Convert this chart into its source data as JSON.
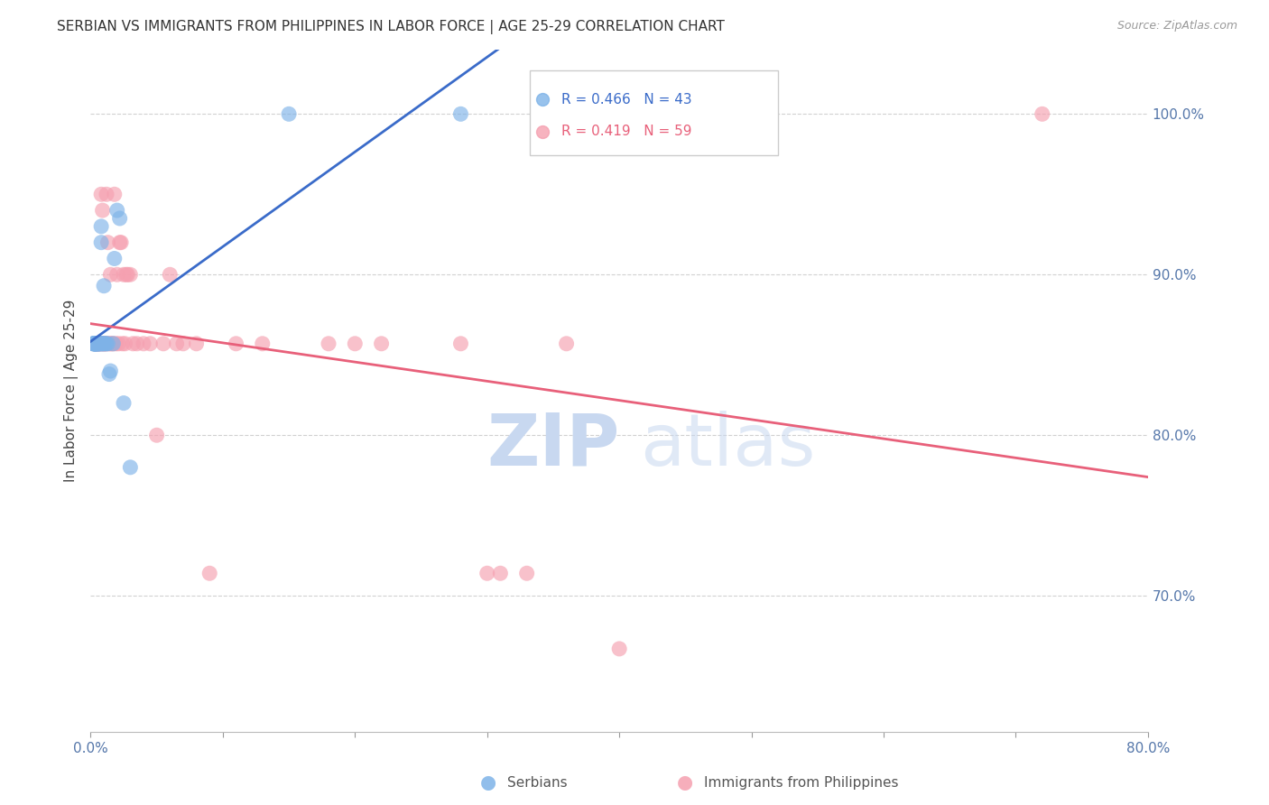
{
  "title": "SERBIAN VS IMMIGRANTS FROM PHILIPPINES IN LABOR FORCE | AGE 25-29 CORRELATION CHART",
  "source": "Source: ZipAtlas.com",
  "ylabel": "In Labor Force | Age 25-29",
  "xlim": [
    0.0,
    0.8
  ],
  "ylim": [
    0.615,
    1.04
  ],
  "xticks": [
    0.0,
    0.1,
    0.2,
    0.3,
    0.4,
    0.5,
    0.6,
    0.7,
    0.8
  ],
  "yticks": [
    0.7,
    0.8,
    0.9,
    1.0
  ],
  "x_tick_labels": [
    "0.0%",
    "",
    "",
    "",
    "",
    "",
    "",
    "",
    "80.0%"
  ],
  "y_tick_labels_right": [
    "70.0%",
    "80.0%",
    "90.0%",
    "100.0%"
  ],
  "legend": {
    "blue_r": "R = 0.466",
    "blue_n": "N = 43",
    "pink_r": "R = 0.419",
    "pink_n": "N = 59",
    "label_blue": "Serbians",
    "label_pink": "Immigrants from Philippines"
  },
  "blue_color": "#7EB3E8",
  "pink_color": "#F5A0B0",
  "trend_blue": "#3A6BC9",
  "trend_pink": "#E8607A",
  "blue_scatter_x": [
    0.002,
    0.002,
    0.002,
    0.003,
    0.003,
    0.003,
    0.003,
    0.003,
    0.003,
    0.004,
    0.004,
    0.004,
    0.004,
    0.004,
    0.005,
    0.005,
    0.005,
    0.005,
    0.006,
    0.006,
    0.006,
    0.007,
    0.007,
    0.008,
    0.008,
    0.008,
    0.009,
    0.009,
    0.01,
    0.01,
    0.011,
    0.012,
    0.013,
    0.014,
    0.015,
    0.017,
    0.018,
    0.02,
    0.022,
    0.025,
    0.03,
    0.15,
    0.28
  ],
  "blue_scatter_y": [
    0.857,
    0.857,
    0.857,
    0.857,
    0.857,
    0.857,
    0.857,
    0.857,
    0.857,
    0.857,
    0.857,
    0.857,
    0.857,
    0.857,
    0.857,
    0.857,
    0.857,
    0.857,
    0.857,
    0.857,
    0.857,
    0.857,
    0.857,
    0.93,
    0.92,
    0.857,
    0.857,
    0.857,
    0.893,
    0.857,
    0.857,
    0.857,
    0.857,
    0.838,
    0.84,
    0.857,
    0.91,
    0.94,
    0.935,
    0.82,
    0.78,
    1.0,
    1.0
  ],
  "pink_scatter_x": [
    0.003,
    0.004,
    0.005,
    0.005,
    0.006,
    0.006,
    0.007,
    0.007,
    0.008,
    0.008,
    0.009,
    0.009,
    0.01,
    0.01,
    0.011,
    0.011,
    0.012,
    0.012,
    0.013,
    0.014,
    0.015,
    0.015,
    0.016,
    0.017,
    0.018,
    0.019,
    0.02,
    0.021,
    0.022,
    0.023,
    0.024,
    0.025,
    0.026,
    0.027,
    0.028,
    0.03,
    0.032,
    0.035,
    0.04,
    0.045,
    0.05,
    0.055,
    0.06,
    0.065,
    0.07,
    0.08,
    0.09,
    0.11,
    0.13,
    0.18,
    0.2,
    0.22,
    0.28,
    0.3,
    0.31,
    0.33,
    0.36,
    0.4,
    0.72
  ],
  "pink_scatter_y": [
    0.857,
    0.857,
    0.857,
    0.857,
    0.857,
    0.857,
    0.857,
    0.857,
    0.857,
    0.95,
    0.857,
    0.94,
    0.857,
    0.857,
    0.857,
    0.857,
    0.857,
    0.95,
    0.92,
    0.857,
    0.9,
    0.857,
    0.857,
    0.857,
    0.95,
    0.857,
    0.9,
    0.857,
    0.92,
    0.92,
    0.857,
    0.9,
    0.857,
    0.9,
    0.9,
    0.9,
    0.857,
    0.857,
    0.857,
    0.857,
    0.8,
    0.857,
    0.9,
    0.857,
    0.857,
    0.857,
    0.714,
    0.857,
    0.857,
    0.857,
    0.857,
    0.857,
    0.857,
    0.714,
    0.714,
    0.714,
    0.857,
    0.667,
    1.0
  ]
}
